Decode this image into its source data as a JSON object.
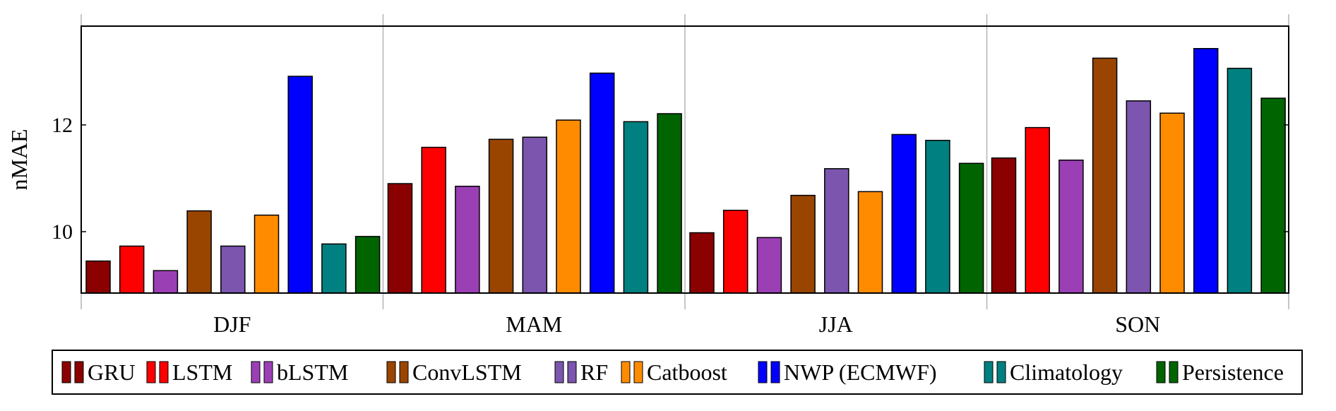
{
  "chart_data": {
    "type": "bar",
    "title": "",
    "xlabel": "",
    "ylabel": "nMAE",
    "ylim": [
      8.85,
      13.85
    ],
    "yticks": [
      10,
      12
    ],
    "grid": "vertical separators between groups",
    "legend_position": "bottom",
    "categories": [
      "DJF",
      "MAM",
      "JJA",
      "SON"
    ],
    "series": [
      {
        "name": "GRU",
        "color": "#8b0000",
        "values": [
          9.45,
          10.9,
          9.98,
          11.38
        ]
      },
      {
        "name": "LSTM",
        "color": "#ff0000",
        "values": [
          9.73,
          11.58,
          10.4,
          11.95
        ]
      },
      {
        "name": "bLSTM",
        "color": "#9b3fb5",
        "values": [
          9.27,
          10.85,
          9.89,
          11.34
        ]
      },
      {
        "name": "ConvLSTM",
        "color": "#994500",
        "values": [
          10.39,
          11.73,
          10.68,
          13.25
        ]
      },
      {
        "name": "RF",
        "color": "#7b55ae",
        "values": [
          9.73,
          11.77,
          11.18,
          12.45
        ]
      },
      {
        "name": "Catboost",
        "color": "#ff8c00",
        "values": [
          10.31,
          12.09,
          10.75,
          12.22
        ]
      },
      {
        "name": "NWP (ECMWF)",
        "color": "#0000ff",
        "values": [
          12.91,
          12.97,
          11.82,
          13.43
        ]
      },
      {
        "name": "Climatology",
        "color": "#008080",
        "values": [
          9.77,
          12.06,
          11.71,
          13.06
        ]
      },
      {
        "name": "Persistence",
        "color": "#006400",
        "values": [
          9.91,
          12.21,
          11.28,
          12.5
        ]
      }
    ]
  }
}
